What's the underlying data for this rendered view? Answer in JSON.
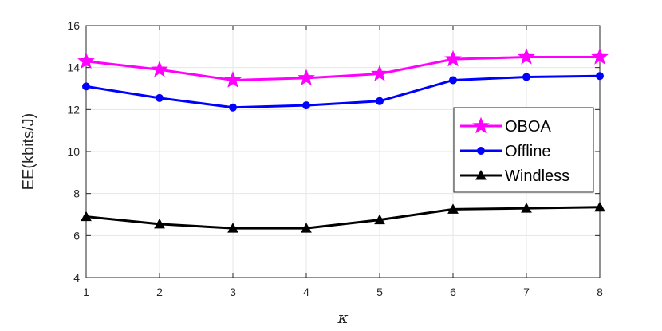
{
  "chart_data": {
    "type": "line",
    "xlabel": "κ",
    "ylabel": "EE(kbits/J)",
    "x": [
      1,
      2,
      3,
      4,
      5,
      6,
      7,
      8
    ],
    "xlim": [
      1,
      8
    ],
    "ylim": [
      4,
      16
    ],
    "xticks": [
      1,
      2,
      3,
      4,
      5,
      6,
      7,
      8
    ],
    "yticks": [
      4,
      6,
      8,
      10,
      12,
      14,
      16
    ],
    "grid": true,
    "legend_position": "right",
    "series": [
      {
        "name": "OBOA",
        "color": "#ff00ff",
        "marker": "star",
        "values": [
          14.3,
          13.9,
          13.4,
          13.5,
          13.7,
          14.4,
          14.5,
          14.5
        ]
      },
      {
        "name": "Offline",
        "color": "#0000ff",
        "marker": "circle",
        "values": [
          13.1,
          12.55,
          12.1,
          12.2,
          12.4,
          13.4,
          13.55,
          13.6
        ]
      },
      {
        "name": "Windless",
        "color": "#000000",
        "marker": "triangle",
        "values": [
          6.9,
          6.55,
          6.35,
          6.35,
          6.75,
          7.25,
          7.3,
          7.35
        ]
      }
    ]
  }
}
